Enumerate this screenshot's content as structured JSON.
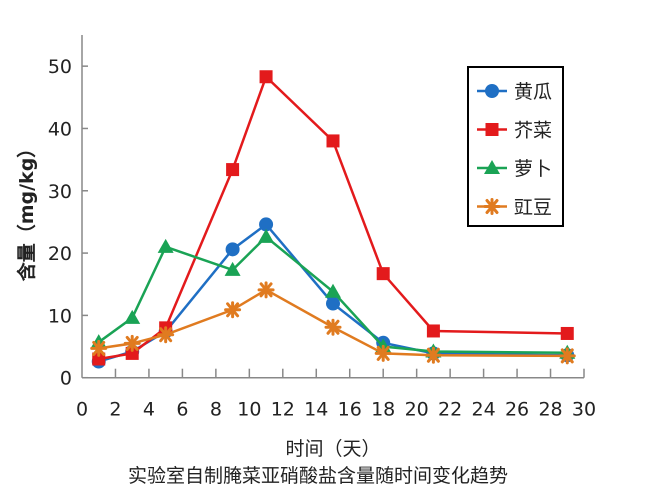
{
  "chart_data": {
    "type": "line",
    "title": "实验室自制腌菜亚硝酸盐含量随时间变化趋势",
    "xlabel": "时间（天）",
    "ylabel": "含量（mg/kg）",
    "xlim": [
      0,
      30
    ],
    "ylim": [
      0,
      55
    ],
    "xticks": [
      0,
      2,
      4,
      6,
      8,
      10,
      12,
      14,
      16,
      18,
      20,
      22,
      24,
      26,
      28,
      30
    ],
    "yticks": [
      0,
      10,
      20,
      30,
      40,
      50
    ],
    "grid": false,
    "legend_position": "top-right",
    "x": [
      1,
      3,
      5,
      9,
      11,
      15,
      18,
      21,
      29
    ],
    "series": [
      {
        "name": "黄瓜",
        "color": "#1f6fc4",
        "marker": "circle",
        "values": [
          2.6,
          4.2,
          7.4,
          20.6,
          24.6,
          11.9,
          5.6,
          3.9,
          3.6
        ]
      },
      {
        "name": "芥菜",
        "color": "#e31a1c",
        "marker": "square",
        "values": [
          3.0,
          3.9,
          8.0,
          33.4,
          48.3,
          38.0,
          16.7,
          7.5,
          7.1
        ]
      },
      {
        "name": "萝卜",
        "color": "#1aa355",
        "marker": "triangle",
        "values": [
          5.7,
          9.6,
          21.0,
          17.3,
          22.6,
          13.8,
          5.0,
          4.2,
          4.0
        ]
      },
      {
        "name": "豇豆",
        "color": "#e07b20",
        "marker": "asterisk",
        "values": [
          4.7,
          5.5,
          6.9,
          10.9,
          14.1,
          8.1,
          3.9,
          3.6,
          3.5
        ]
      }
    ]
  }
}
